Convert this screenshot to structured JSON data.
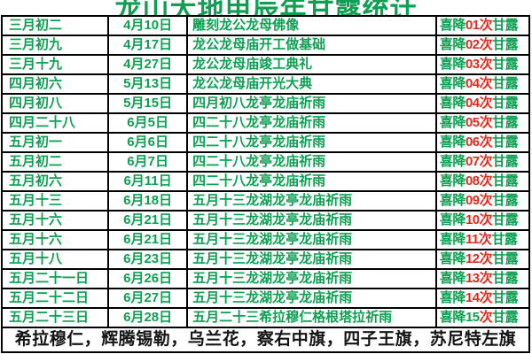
{
  "title": "龙山大地甲辰年甘露统计",
  "colors": {
    "green": "#0ea052",
    "red": "#e02a1e",
    "black": "#141414"
  },
  "table": {
    "count_prefix": "喜降",
    "count_unit": "次",
    "count_suffix": "甘露",
    "rows": [
      {
        "lunar": "三月初二",
        "solar": "4月10日",
        "event": "雕刻龙公龙母佛像",
        "count": "01",
        "count_green": false
      },
      {
        "lunar": "三月初九",
        "solar": "4月17日",
        "event": "龙公龙母庙开工做基础",
        "count": "02",
        "count_green": false
      },
      {
        "lunar": "三月十九",
        "solar": "4月27日",
        "event": "龙公龙母庙竣工典礼",
        "count": "03",
        "count_green": false
      },
      {
        "lunar": "四月初六",
        "solar": "5月13日",
        "event": "龙公龙母庙开光大典",
        "count": "04",
        "count_green": false
      },
      {
        "lunar": "四月初八",
        "solar": "5月15日",
        "event": "四月初八龙亭龙庙祈雨",
        "count": "04",
        "count_green": false
      },
      {
        "lunar": "四月二十八",
        "solar": "6月5日",
        "event": "四二十八龙亭龙庙祈雨",
        "count": "05",
        "count_green": false
      },
      {
        "lunar": "五月初一",
        "solar": "6月6日",
        "event": "四二十八龙亭龙庙祈雨",
        "count": "06",
        "count_green": false
      },
      {
        "lunar": "五月初二",
        "solar": "6月7日",
        "event": "四二十八龙亭龙庙祈雨",
        "count": "07",
        "count_green": false
      },
      {
        "lunar": "五月初六",
        "solar": "6月11日",
        "event": "四二十八龙亭龙庙祈雨",
        "count": "08",
        "count_green": false
      },
      {
        "lunar": "五月十三",
        "solar": "6月18日",
        "event": "五月十三龙湖龙亭龙庙祈雨",
        "count": "09",
        "count_green": false
      },
      {
        "lunar": "五月十六",
        "solar": "6月21日",
        "event": "五月十三龙湖龙亭龙庙祈雨",
        "count": "10",
        "count_green": false
      },
      {
        "lunar": "五月十六",
        "solar": "6月21日",
        "event": "五月十三龙湖龙亭龙庙祈雨",
        "count": "11",
        "count_green": false
      },
      {
        "lunar": "五月十八",
        "solar": "6月23日",
        "event": "五月十三龙湖龙亭龙庙祈雨",
        "count": "12",
        "count_green": false
      },
      {
        "lunar": "五月二十一日",
        "solar": "6月26日",
        "event": "五月十三龙湖龙亭龙庙祈雨",
        "count": "13",
        "count_green": false
      },
      {
        "lunar": "五月二十二日",
        "solar": "6月27日",
        "event": "五月十三龙湖龙亭龙庙祈雨",
        "count": "14",
        "count_green": false
      },
      {
        "lunar": "五月二十三日",
        "solar": "6月28日",
        "event": "五月二十三希拉穆仁格根塔拉祈雨",
        "count": "15",
        "count_green": true
      }
    ]
  },
  "footer": "希拉穆仁，辉腾锡勒，乌兰花，察右中旗，四子王旗，苏尼特左旗"
}
